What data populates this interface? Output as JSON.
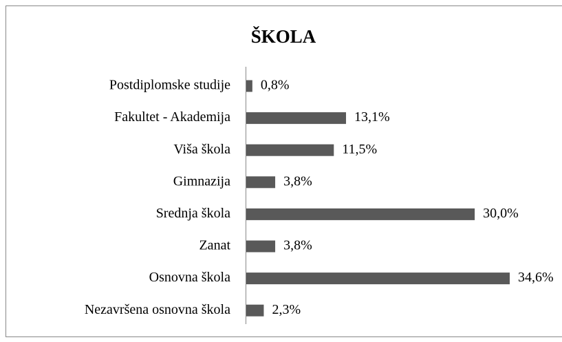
{
  "chart_data": {
    "type": "bar",
    "orientation": "horizontal",
    "title": "ŠKOLA",
    "categories": [
      "Postdiplomske studije",
      "Fakultet - Akademija",
      "Viša škola",
      "Gimnazija",
      "Srednja škola",
      "Zanat",
      "Osnovna škola",
      "Nezavršena osnovna škola"
    ],
    "values": [
      0.8,
      13.1,
      11.5,
      3.8,
      30.0,
      3.8,
      34.6,
      2.3
    ],
    "value_labels": [
      "0,8%",
      "13,1%",
      "11,5%",
      "3,8%",
      "30,0%",
      "3,8%",
      "34,6%",
      "2,3%"
    ],
    "color": "#595959"
  }
}
